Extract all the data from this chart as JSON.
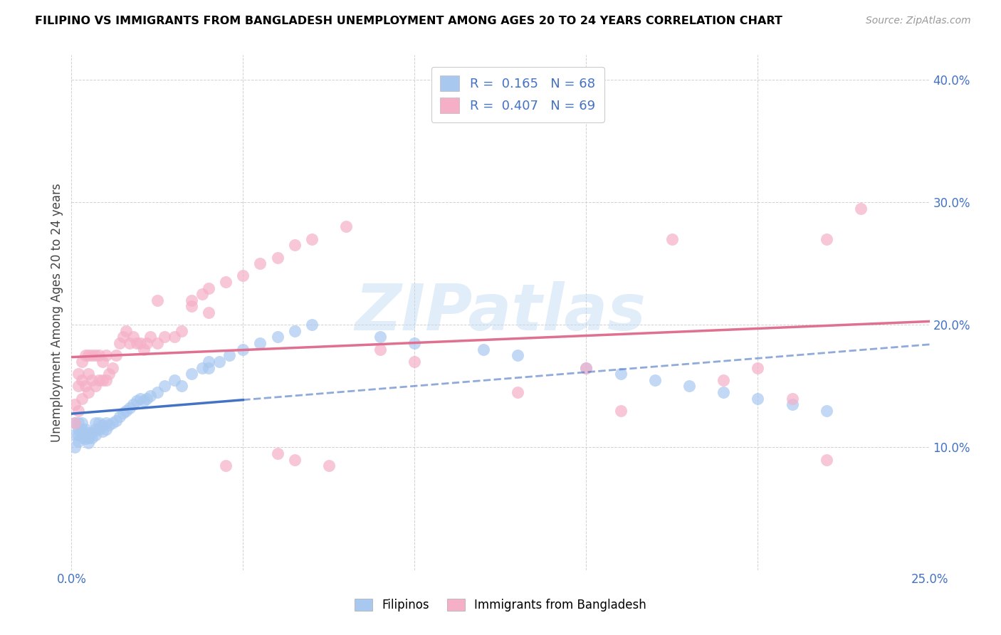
{
  "title": "FILIPINO VS IMMIGRANTS FROM BANGLADESH UNEMPLOYMENT AMONG AGES 20 TO 24 YEARS CORRELATION CHART",
  "source": "Source: ZipAtlas.com",
  "ylabel": "Unemployment Among Ages 20 to 24 years",
  "xlim": [
    0.0,
    0.25
  ],
  "ylim": [
    0.0,
    0.42
  ],
  "watermark": "ZIPatlas",
  "legend_label1": "Filipinos",
  "legend_label2": "Immigrants from Bangladesh",
  "color_blue": "#a8c8f0",
  "color_pink": "#f5b0c8",
  "trendline_blue": "#4472c4",
  "trendline_pink": "#e07090",
  "blue_R": 0.165,
  "blue_N": 68,
  "pink_R": 0.407,
  "pink_N": 69,
  "scatter_blue_x": [
    0.001,
    0.001,
    0.001,
    0.002,
    0.002,
    0.002,
    0.002,
    0.003,
    0.003,
    0.003,
    0.003,
    0.004,
    0.004,
    0.004,
    0.005,
    0.005,
    0.005,
    0.006,
    0.006,
    0.007,
    0.007,
    0.007,
    0.008,
    0.008,
    0.009,
    0.009,
    0.01,
    0.01,
    0.011,
    0.012,
    0.013,
    0.014,
    0.015,
    0.016,
    0.017,
    0.018,
    0.019,
    0.02,
    0.021,
    0.022,
    0.023,
    0.025,
    0.027,
    0.03,
    0.032,
    0.035,
    0.038,
    0.04,
    0.04,
    0.043,
    0.046,
    0.05,
    0.055,
    0.06,
    0.065,
    0.07,
    0.09,
    0.1,
    0.12,
    0.13,
    0.15,
    0.16,
    0.17,
    0.18,
    0.19,
    0.2,
    0.21,
    0.22
  ],
  "scatter_blue_y": [
    0.1,
    0.11,
    0.12,
    0.105,
    0.11,
    0.115,
    0.12,
    0.108,
    0.112,
    0.115,
    0.12,
    0.107,
    0.11,
    0.115,
    0.104,
    0.108,
    0.112,
    0.108,
    0.112,
    0.11,
    0.115,
    0.12,
    0.115,
    0.12,
    0.113,
    0.118,
    0.115,
    0.12,
    0.118,
    0.12,
    0.122,
    0.125,
    0.128,
    0.13,
    0.132,
    0.135,
    0.138,
    0.14,
    0.138,
    0.14,
    0.142,
    0.145,
    0.15,
    0.155,
    0.15,
    0.16,
    0.165,
    0.165,
    0.17,
    0.17,
    0.175,
    0.18,
    0.185,
    0.19,
    0.195,
    0.2,
    0.19,
    0.185,
    0.18,
    0.175,
    0.165,
    0.16,
    0.155,
    0.15,
    0.145,
    0.14,
    0.135,
    0.13
  ],
  "scatter_pink_x": [
    0.001,
    0.001,
    0.002,
    0.002,
    0.002,
    0.003,
    0.003,
    0.003,
    0.004,
    0.004,
    0.005,
    0.005,
    0.005,
    0.006,
    0.006,
    0.007,
    0.007,
    0.008,
    0.008,
    0.009,
    0.009,
    0.01,
    0.01,
    0.011,
    0.012,
    0.013,
    0.014,
    0.015,
    0.016,
    0.017,
    0.018,
    0.019,
    0.02,
    0.021,
    0.022,
    0.023,
    0.025,
    0.027,
    0.03,
    0.032,
    0.035,
    0.038,
    0.04,
    0.045,
    0.05,
    0.055,
    0.06,
    0.065,
    0.07,
    0.08,
    0.09,
    0.1,
    0.13,
    0.15,
    0.16,
    0.175,
    0.19,
    0.2,
    0.21,
    0.22,
    0.23,
    0.025,
    0.035,
    0.04,
    0.045,
    0.06,
    0.065,
    0.075,
    0.22
  ],
  "scatter_pink_y": [
    0.12,
    0.135,
    0.13,
    0.15,
    0.16,
    0.14,
    0.155,
    0.17,
    0.15,
    0.175,
    0.145,
    0.16,
    0.175,
    0.155,
    0.175,
    0.15,
    0.175,
    0.155,
    0.175,
    0.155,
    0.17,
    0.155,
    0.175,
    0.16,
    0.165,
    0.175,
    0.185,
    0.19,
    0.195,
    0.185,
    0.19,
    0.185,
    0.185,
    0.18,
    0.185,
    0.19,
    0.185,
    0.19,
    0.19,
    0.195,
    0.22,
    0.225,
    0.23,
    0.235,
    0.24,
    0.25,
    0.255,
    0.265,
    0.27,
    0.28,
    0.18,
    0.17,
    0.145,
    0.165,
    0.13,
    0.27,
    0.155,
    0.165,
    0.14,
    0.09,
    0.295,
    0.22,
    0.215,
    0.21,
    0.085,
    0.095,
    0.09,
    0.085,
    0.27
  ]
}
